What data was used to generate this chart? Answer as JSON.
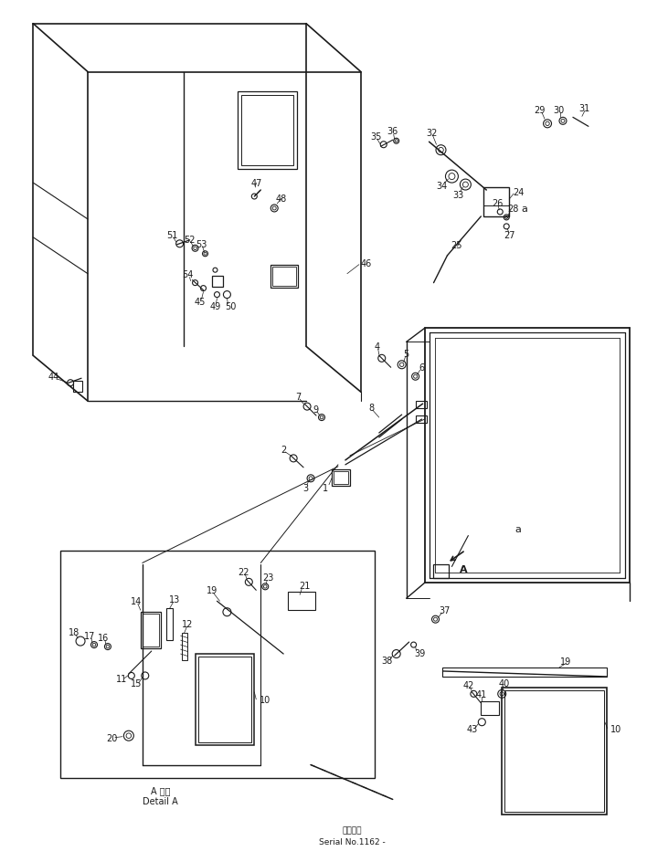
{
  "bg_color": "#ffffff",
  "line_color": "#1a1a1a",
  "fig_width": 7.08,
  "fig_height": 9.45,
  "dpi": 100,
  "footer_text1": "適用張號",
  "footer_text2": "Serial No.1162 -",
  "detail_text1": "A 詳細",
  "detail_text2": "Detail A"
}
